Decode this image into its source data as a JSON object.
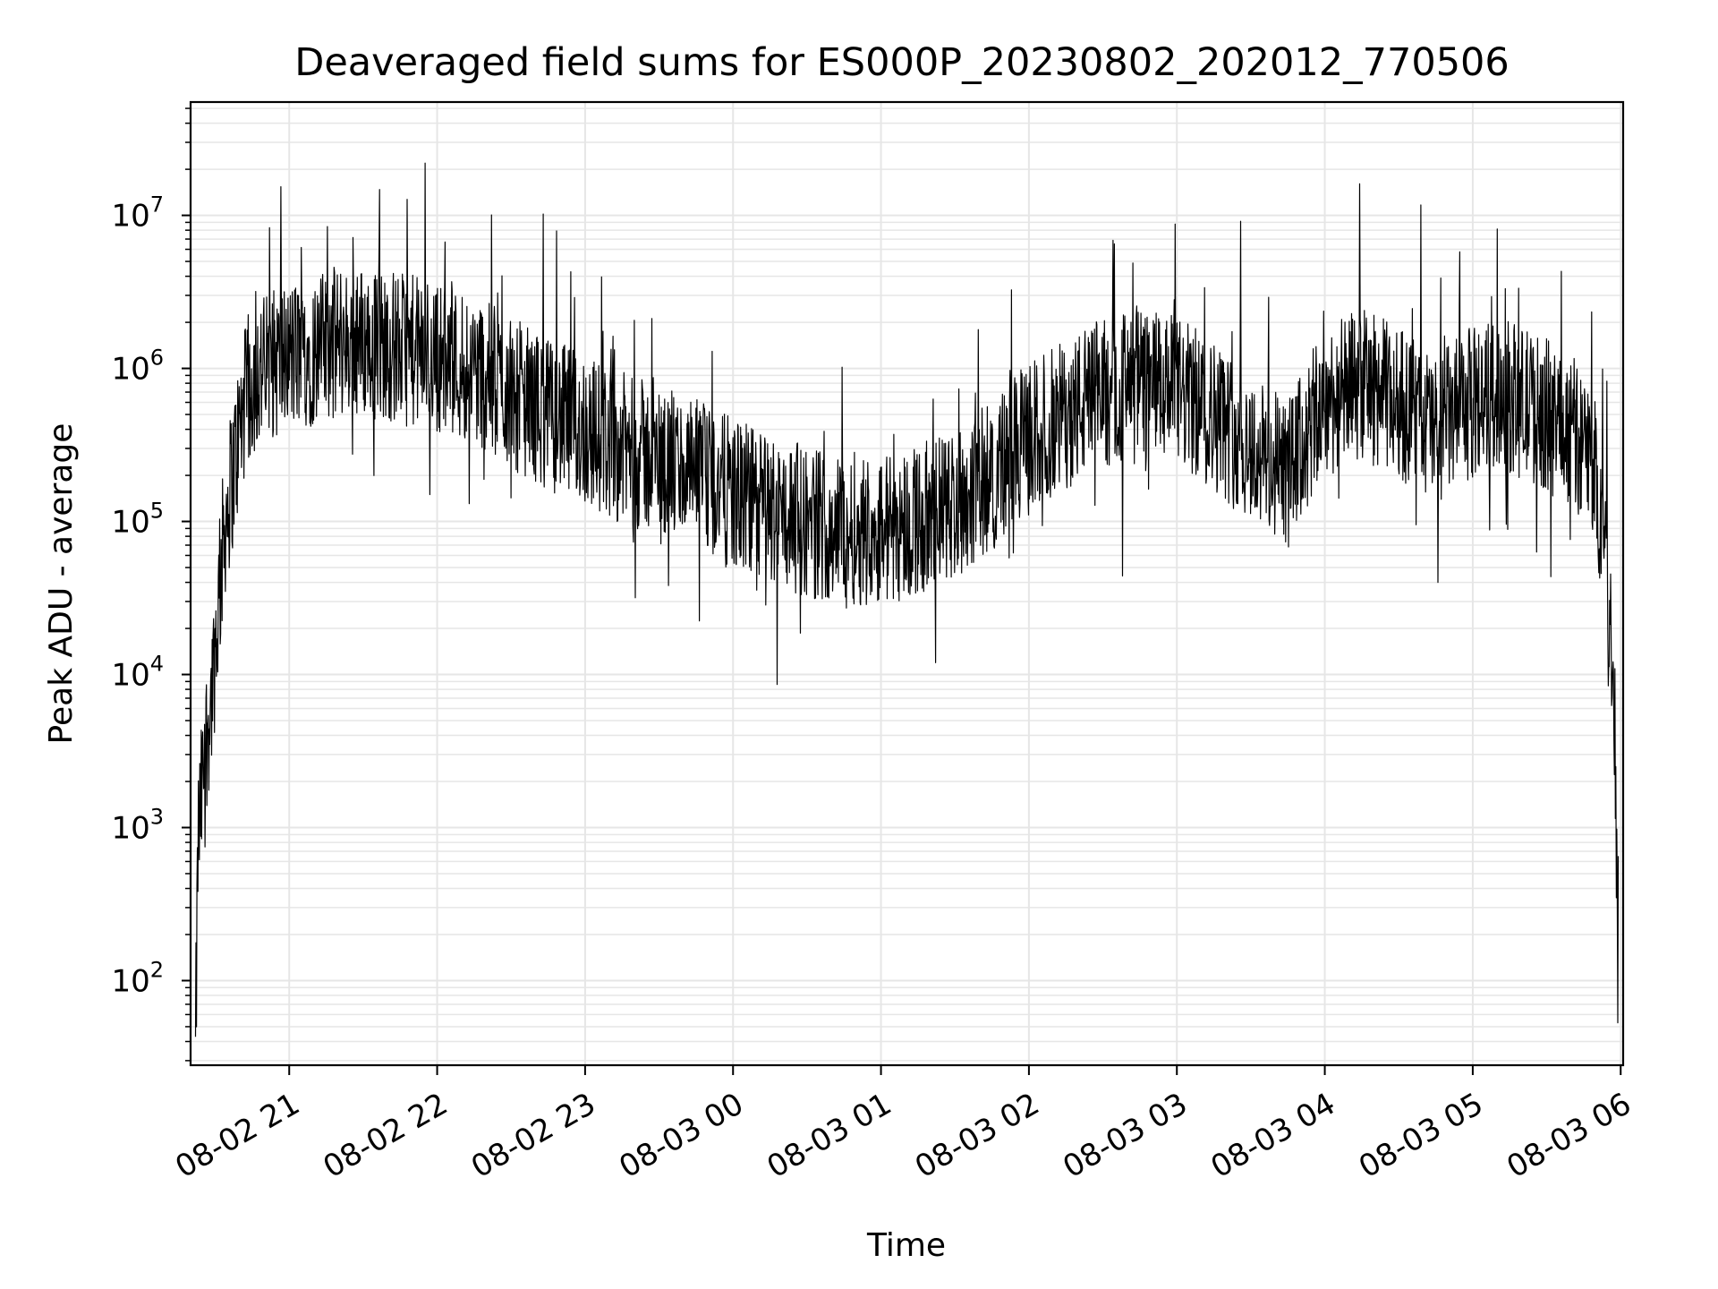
{
  "chart_data": {
    "type": "line",
    "title": "Deaveraged field sums for ES000P_20230802_202012_770506",
    "xlabel": "Time",
    "ylabel": "Peak ADU - average",
    "y_scale": "log",
    "grid": true,
    "line_color": "#000000",
    "grid_color": "#e6e6e6",
    "x_range": [
      "2023-08-02 20:20",
      "2023-08-03 06:01"
    ],
    "ylim": [
      28,
      55000000
    ],
    "x_ticks": [
      {
        "value": "2023-08-02 21:00",
        "label": "08-02 21"
      },
      {
        "value": "2023-08-02 22:00",
        "label": "08-02 22"
      },
      {
        "value": "2023-08-02 23:00",
        "label": "08-02 23"
      },
      {
        "value": "2023-08-03 00:00",
        "label": "08-03 00"
      },
      {
        "value": "2023-08-03 01:00",
        "label": "08-03 01"
      },
      {
        "value": "2023-08-03 02:00",
        "label": "08-03 02"
      },
      {
        "value": "2023-08-03 03:00",
        "label": "08-03 03"
      },
      {
        "value": "2023-08-03 04:00",
        "label": "08-03 04"
      },
      {
        "value": "2023-08-03 05:00",
        "label": "08-03 05"
      },
      {
        "value": "2023-08-03 06:00",
        "label": "08-03 06"
      }
    ],
    "y_ticks": [
      {
        "value": 100,
        "base": "10",
        "exp": "2"
      },
      {
        "value": 1000,
        "base": "10",
        "exp": "3"
      },
      {
        "value": 10000,
        "base": "10",
        "exp": "4"
      },
      {
        "value": 100000,
        "base": "10",
        "exp": "5"
      },
      {
        "value": 1000000,
        "base": "10",
        "exp": "6"
      },
      {
        "value": 10000000,
        "base": "10",
        "exp": "7"
      }
    ],
    "series": [
      {
        "x": [
          "2023-08-02 20:22",
          "2023-08-02 20:23",
          "2023-08-02 20:25",
          "2023-08-02 20:27",
          "2023-08-02 20:28",
          "2023-08-02 20:30",
          "2023-08-02 20:32",
          "2023-08-02 20:34",
          "2023-08-02 20:37",
          "2023-08-02 20:40",
          "2023-08-02 20:43",
          "2023-08-02 20:46",
          "2023-08-02 20:50",
          "2023-08-02 20:55",
          "2023-08-02 21:00",
          "2023-08-02 21:10",
          "2023-08-02 21:20",
          "2023-08-02 21:30",
          "2023-08-02 21:40",
          "2023-08-02 21:50",
          "2023-08-02 22:00",
          "2023-08-02 22:15",
          "2023-08-02 22:30",
          "2023-08-02 22:45",
          "2023-08-02 23:00",
          "2023-08-02 23:15",
          "2023-08-02 23:30",
          "2023-08-02 23:45",
          "2023-08-03 00:00",
          "2023-08-03 00:15",
          "2023-08-03 00:30",
          "2023-08-03 00:45",
          "2023-08-03 01:00",
          "2023-08-03 01:15",
          "2023-08-03 01:30",
          "2023-08-03 01:45",
          "2023-08-03 02:00",
          "2023-08-03 02:15",
          "2023-08-03 02:30",
          "2023-08-03 02:45",
          "2023-08-03 03:00",
          "2023-08-03 03:15",
          "2023-08-03 03:30",
          "2023-08-03 03:45",
          "2023-08-03 04:00",
          "2023-08-03 04:15",
          "2023-08-03 04:30",
          "2023-08-03 04:45",
          "2023-08-03 05:00",
          "2023-08-03 05:10",
          "2023-08-03 05:20",
          "2023-08-03 05:30",
          "2023-08-03 05:40",
          "2023-08-03 05:45",
          "2023-08-03 05:50",
          "2023-08-03 05:54",
          "2023-08-03 05:57",
          "2023-08-03 05:58",
          "2023-08-03 05:59"
        ],
        "y": [
          30,
          800,
          2000,
          5000,
          6000,
          15000,
          40000,
          100000,
          200000,
          400000,
          700000,
          900000,
          1000000,
          1100000,
          1200000,
          1300000,
          1500000,
          1500000,
          1400000,
          1300000,
          1200000,
          1000000,
          700000,
          500000,
          400000,
          300000,
          250000,
          200000,
          150000,
          120000,
          100000,
          90000,
          90000,
          100000,
          130000,
          200000,
          350000,
          500000,
          700000,
          800000,
          700000,
          500000,
          300000,
          200000,
          600000,
          800000,
          600000,
          400000,
          600000,
          700000,
          600000,
          500000,
          400000,
          300000,
          200000,
          60000,
          10000,
          3000,
          30
        ]
      }
    ]
  }
}
